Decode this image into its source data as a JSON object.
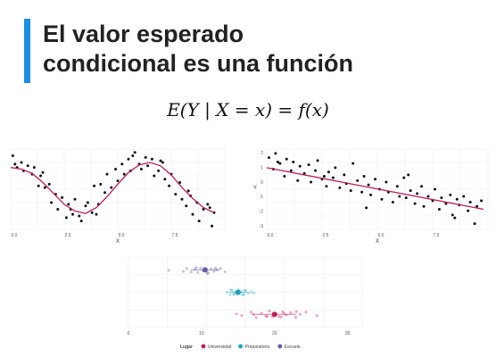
{
  "slide": {
    "title_line1": "El valor esperado",
    "title_line2": "condicional es una función",
    "equation": "E(Y | X = x) = f(x)",
    "accent_color": "#1a8fe0"
  },
  "chart_data": [
    {
      "type": "scatter",
      "xlabel": "X",
      "ylabel": "",
      "xlim": [
        0,
        10
      ],
      "ylim": [
        -2.4,
        2.4
      ],
      "x_ticks": [
        "0.0",
        "2.5",
        "5.0",
        "7.5"
      ],
      "y_ticks": [],
      "grid": true,
      "point_color": "#111111",
      "line_color": "#c2185b",
      "line": {
        "x": [
          0,
          0.5,
          1,
          1.5,
          2,
          2.5,
          3,
          3.5,
          4,
          4.5,
          5,
          5.5,
          6,
          6.5,
          7,
          7.5,
          8,
          8.5,
          9,
          9.5
        ],
        "y": [
          1.3,
          1.2,
          0.95,
          0.4,
          -0.25,
          -0.9,
          -1.3,
          -1.45,
          -1.1,
          -0.45,
          0.3,
          1.0,
          1.45,
          1.6,
          1.4,
          0.85,
          0.1,
          -0.55,
          -1.1,
          -1.4
        ]
      },
      "points": {
        "x": [
          0.1,
          0.3,
          0.5,
          0.6,
          0.8,
          1.0,
          1.1,
          1.3,
          1.4,
          1.6,
          1.8,
          1.9,
          2.1,
          2.2,
          2.4,
          2.6,
          2.7,
          2.9,
          3.0,
          3.2,
          3.3,
          3.5,
          3.6,
          3.8,
          3.9,
          4.1,
          4.2,
          4.4,
          4.5,
          4.7,
          4.9,
          5.0,
          5.2,
          5.3,
          5.5,
          5.6,
          5.8,
          6.0,
          6.1,
          6.3,
          6.4,
          6.6,
          6.7,
          6.9,
          7.1,
          7.2,
          7.4,
          7.5,
          7.7,
          7.9,
          8.0,
          8.2,
          8.3,
          8.5,
          8.7,
          8.8,
          9.0,
          9.2,
          9.4,
          9.5,
          0.2,
          1.5,
          2.8,
          4.0,
          5.7,
          7.0,
          8.4,
          9.3
        ],
        "y": [
          2.0,
          1.3,
          1.6,
          1.1,
          1.4,
          0.9,
          1.3,
          0.2,
          0.8,
          0.1,
          0.3,
          -0.8,
          -0.3,
          -1.2,
          -0.5,
          -1.7,
          -0.9,
          -1.5,
          -0.6,
          -1.6,
          -1.9,
          -1.0,
          -0.8,
          -1.4,
          0.2,
          -0.9,
          0.3,
          -0.2,
          0.9,
          0.1,
          1.2,
          0.5,
          1.5,
          0.9,
          1.8,
          1.1,
          2.2,
          1.5,
          1.2,
          1.9,
          1.4,
          1.8,
          0.8,
          1.1,
          1.6,
          0.6,
          0.2,
          0.9,
          -0.3,
          0.4,
          -0.6,
          -1.0,
          -0.1,
          -1.5,
          -0.8,
          -1.9,
          -1.2,
          -0.9,
          -2.2,
          -1.4,
          1.5,
          1.0,
          -1.2,
          -1.5,
          2.0,
          1.7,
          -0.4,
          -1.1
        ]
      }
    },
    {
      "type": "scatter",
      "xlabel": "X",
      "ylabel": "Y",
      "xlim": [
        0,
        10
      ],
      "ylim": [
        -3.2,
        2.4
      ],
      "x_ticks": [
        "0.0",
        "2.5",
        "5.0",
        "7.5"
      ],
      "y_ticks": [
        "2",
        "1",
        "0",
        "-1",
        "-2",
        "-3"
      ],
      "grid": true,
      "point_color": "#111111",
      "line_color": "#c2185b",
      "line": {
        "x": [
          0,
          9.8
        ],
        "y": [
          1.1,
          -1.8
        ]
      },
      "points": {
        "x": [
          0.1,
          0.3,
          0.4,
          0.6,
          0.8,
          0.9,
          1.1,
          1.2,
          1.4,
          1.5,
          1.7,
          1.9,
          2.0,
          2.2,
          2.3,
          2.5,
          2.7,
          2.8,
          3.0,
          3.1,
          3.3,
          3.5,
          3.6,
          3.8,
          3.9,
          4.1,
          4.3,
          4.4,
          4.6,
          4.7,
          4.9,
          5.1,
          5.2,
          5.4,
          5.5,
          5.7,
          5.9,
          6.0,
          6.2,
          6.3,
          6.5,
          6.7,
          6.8,
          7.0,
          7.1,
          7.3,
          7.5,
          7.6,
          7.8,
          7.9,
          8.1,
          8.3,
          8.4,
          8.6,
          8.7,
          8.9,
          9.1,
          9.2,
          9.4,
          9.5,
          9.7,
          0.5,
          2.6,
          4.5,
          6.4,
          8.5
        ],
        "y": [
          1.8,
          1.0,
          2.1,
          1.4,
          0.5,
          1.7,
          0.9,
          1.5,
          0.2,
          1.2,
          0.7,
          1.3,
          0.1,
          0.9,
          1.6,
          0.3,
          -0.2,
          0.8,
          0.4,
          1.1,
          -0.3,
          0.6,
          0.0,
          -0.5,
          1.4,
          0.2,
          -0.6,
          0.5,
          -0.1,
          -0.8,
          0.3,
          -0.4,
          -1.1,
          0.1,
          -0.6,
          -1.3,
          -0.2,
          -0.9,
          0.4,
          -1.0,
          -0.5,
          -1.4,
          -0.7,
          -0.2,
          -1.6,
          -0.9,
          -1.2,
          -0.4,
          -1.8,
          -1.0,
          -1.4,
          -0.8,
          -2.2,
          -1.1,
          -1.5,
          -0.9,
          -1.9,
          -1.3,
          -2.8,
          -1.6,
          -1.2,
          1.5,
          0.5,
          -1.7,
          0.6,
          -2.4
        ]
      }
    },
    {
      "type": "scatter",
      "xlabel": "",
      "ylabel": "",
      "xlim": [
        0,
        32
      ],
      "ylim": [
        0.4,
        3.6
      ],
      "x_ticks": [
        "0",
        "10",
        "20",
        "30"
      ],
      "y_ticks": [],
      "grid": true,
      "legend_title": "Lugar",
      "legend_position": "bottom",
      "series": [
        {
          "name": "Universidad",
          "color": "#c2185b",
          "mean": 20,
          "sd": 3,
          "points_x": [
            15.5,
            16.8,
            17.5,
            18.2,
            18.8,
            19.3,
            19.7,
            20.2,
            20.6,
            21.1,
            21.6,
            22.2,
            22.9,
            23.5,
            24.3,
            25.8,
            17.1,
            19.0,
            21.3,
            23.0,
            14.8,
            20.9
          ],
          "points_y": [
            0.95,
            1.1,
            0.85,
            1.05,
            0.92,
            1.15,
            0.88,
            1.02,
            0.9,
            1.12,
            0.97,
            1.08,
            0.86,
            1.0,
            1.1,
            0.94,
            1.0,
            0.9,
            1.05,
            1.12,
            1.02,
            0.87
          ]
        },
        {
          "name": "Preparatoria",
          "color": "#1aa5b8",
          "mean": 15,
          "sd": 1.2,
          "points_x": [
            13.5,
            13.9,
            14.2,
            14.5,
            14.7,
            14.9,
            15.1,
            15.3,
            15.5,
            15.8,
            16.1,
            16.4,
            16.8,
            14.0,
            15.6,
            17.2,
            14.4,
            15.9
          ],
          "points_y": [
            2.0,
            1.9,
            2.08,
            1.95,
            2.05,
            1.92,
            2.1,
            1.98,
            2.03,
            1.9,
            2.07,
            1.96,
            2.02,
            2.12,
            1.88,
            1.97,
            1.9,
            2.1
          ]
        },
        {
          "name": "Escuela",
          "color": "#6b5a9e",
          "mean": 10.5,
          "sd": 2,
          "points_x": [
            5.5,
            8.0,
            8.6,
            9.1,
            9.5,
            9.9,
            10.2,
            10.6,
            10.9,
            11.3,
            11.7,
            12.1,
            12.6,
            13.2,
            9.3,
            10.8,
            11.9,
            7.5
          ],
          "points_y": [
            3.0,
            3.08,
            2.92,
            3.05,
            2.9,
            3.1,
            2.97,
            3.03,
            2.88,
            3.07,
            2.95,
            3.02,
            3.08,
            2.93,
            3.12,
            2.86,
            3.1,
            2.95
          ]
        }
      ]
    }
  ]
}
